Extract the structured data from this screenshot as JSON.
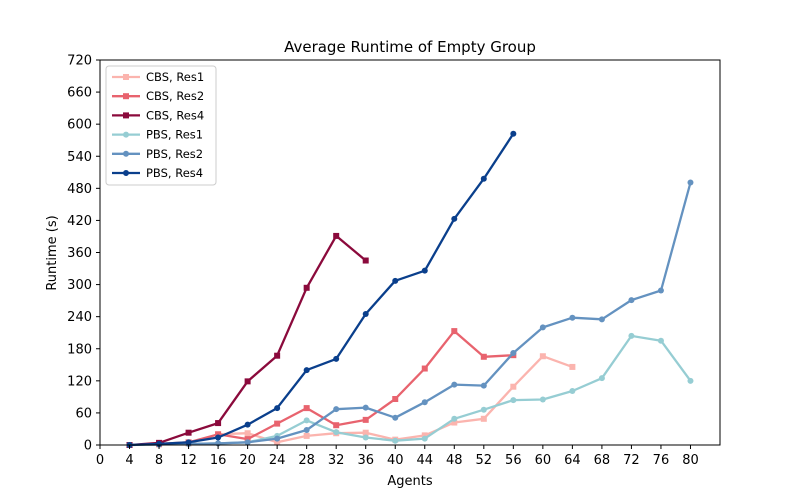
{
  "chart_data": {
    "type": "line",
    "title": "Average Runtime of Empty Group",
    "xlabel": "Agents",
    "ylabel": "Runtime (s)",
    "xlim": [
      0,
      84
    ],
    "ylim": [
      0,
      720
    ],
    "xticks": [
      0,
      4,
      8,
      12,
      16,
      20,
      24,
      28,
      32,
      36,
      40,
      44,
      48,
      52,
      56,
      60,
      64,
      68,
      72,
      76,
      80
    ],
    "yticks": [
      0,
      60,
      120,
      180,
      240,
      300,
      360,
      420,
      480,
      540,
      600,
      660,
      720
    ],
    "grid": false,
    "legend": "top-left",
    "series": [
      {
        "name": "CBS, Res1",
        "color": "#fbb4ae",
        "marker": "square",
        "points": [
          [
            4,
            0
          ],
          [
            8,
            1
          ],
          [
            12,
            3
          ],
          [
            16,
            20
          ],
          [
            20,
            22
          ],
          [
            24,
            5
          ],
          [
            28,
            17
          ],
          [
            32,
            22
          ],
          [
            36,
            23
          ],
          [
            40,
            10
          ],
          [
            44,
            18
          ],
          [
            48,
            42
          ],
          [
            52,
            49
          ],
          [
            56,
            109
          ],
          [
            60,
            166
          ],
          [
            64,
            146
          ]
        ]
      },
      {
        "name": "CBS, Res2",
        "color": "#e8636e",
        "marker": "square",
        "points": [
          [
            4,
            0
          ],
          [
            8,
            2
          ],
          [
            12,
            5
          ],
          [
            16,
            20
          ],
          [
            20,
            11
          ],
          [
            24,
            40
          ],
          [
            28,
            69
          ],
          [
            32,
            37
          ],
          [
            36,
            47
          ],
          [
            40,
            86
          ],
          [
            44,
            143
          ],
          [
            48,
            213
          ],
          [
            52,
            165
          ],
          [
            56,
            168
          ]
        ]
      },
      {
        "name": "CBS, Res4",
        "color": "#8b0a3c",
        "marker": "square",
        "points": [
          [
            4,
            0
          ],
          [
            8,
            4
          ],
          [
            12,
            23
          ],
          [
            16,
            41
          ],
          [
            20,
            119
          ],
          [
            24,
            167
          ],
          [
            28,
            294
          ],
          [
            32,
            391
          ],
          [
            36,
            345
          ]
        ]
      },
      {
        "name": "PBS, Res1",
        "color": "#96cdd3",
        "marker": "circle",
        "points": [
          [
            4,
            0
          ],
          [
            8,
            1
          ],
          [
            12,
            2
          ],
          [
            16,
            3
          ],
          [
            20,
            5
          ],
          [
            24,
            17
          ],
          [
            28,
            46
          ],
          [
            32,
            24
          ],
          [
            36,
            14
          ],
          [
            40,
            8
          ],
          [
            44,
            12
          ],
          [
            48,
            49
          ],
          [
            52,
            66
          ],
          [
            56,
            84
          ],
          [
            60,
            85
          ],
          [
            64,
            101
          ],
          [
            68,
            125
          ],
          [
            72,
            204
          ],
          [
            76,
            195
          ],
          [
            80,
            120
          ]
        ]
      },
      {
        "name": "PBS, Res2",
        "color": "#6492c0",
        "marker": "circle",
        "points": [
          [
            4,
            0
          ],
          [
            8,
            1
          ],
          [
            12,
            2
          ],
          [
            16,
            3
          ],
          [
            20,
            5
          ],
          [
            24,
            12
          ],
          [
            28,
            28
          ],
          [
            32,
            67
          ],
          [
            36,
            70
          ],
          [
            40,
            51
          ],
          [
            44,
            80
          ],
          [
            48,
            113
          ],
          [
            52,
            111
          ],
          [
            56,
            172
          ],
          [
            60,
            220
          ],
          [
            64,
            238
          ],
          [
            68,
            235
          ],
          [
            72,
            271
          ],
          [
            76,
            289
          ],
          [
            80,
            491
          ]
        ]
      },
      {
        "name": "PBS, Res4",
        "color": "#0a3f8c",
        "marker": "circle",
        "points": [
          [
            4,
            0
          ],
          [
            8,
            2
          ],
          [
            12,
            5
          ],
          [
            16,
            14
          ],
          [
            20,
            38
          ],
          [
            24,
            69
          ],
          [
            28,
            140
          ],
          [
            32,
            161
          ],
          [
            36,
            245
          ],
          [
            40,
            307
          ],
          [
            44,
            326
          ],
          [
            48,
            423
          ],
          [
            52,
            498
          ],
          [
            56,
            582
          ]
        ]
      }
    ]
  }
}
